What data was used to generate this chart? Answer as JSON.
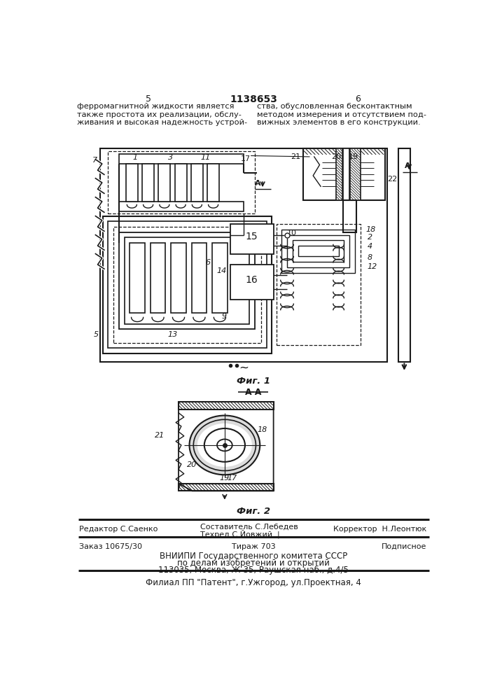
{
  "page_width": 7.07,
  "page_height": 10.0,
  "bg_color": "#ffffff",
  "text_color": "#1a1a1a",
  "line_color": "#1a1a1a",
  "page_num_left": "5",
  "page_num_center": "1138653",
  "page_num_right": "6",
  "text_left_col": "ферромагнитной жидкости является\nтакже простота их реализации, обслу-\nживания и высокая надежность устрой-",
  "text_right_col": "ства, обусловленная бесконтактным\nметодом измерения и отсутствием под-\nвижных элементов в его конструкции.",
  "fig1_label": "Фиг. 1",
  "fig2_label": "Фиг. 2",
  "section_label": "А-А",
  "footer_line1": "Редактор С.Саенко",
  "footer_col2_line1": "Составитель С.Лебедев",
  "footer_col2_line2": "Техред С.Йовжий  |",
  "footer_col3": "Корректор  Н.Леонтюк",
  "footer2_left": "Заказ 10675/30",
  "footer2_center": "Тираж 703",
  "footer2_right": "Подписное",
  "footer3": "ВНИИПИ Государственного комитета СССР",
  "footer4": "по делам изобретений и открытий",
  "footer5": "113035, Москва, Ж-35, Раушская наб., д.4/5",
  "footer6": "Филиал ПП \"Патент\", г.Ужгород, ул.Проектная, 4"
}
